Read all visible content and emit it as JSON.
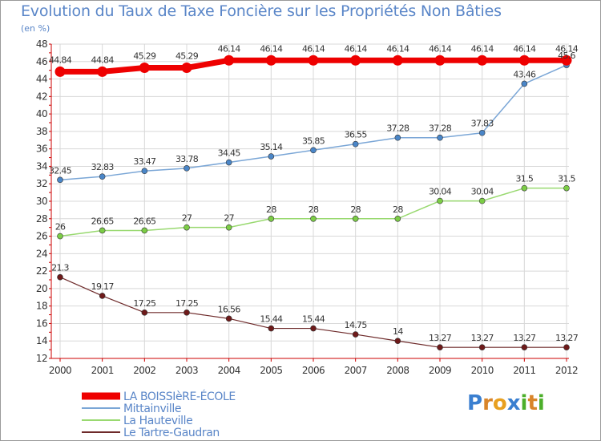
{
  "title": "Evolution du Taux de Taxe Foncière sur les Propriétés Non Bâties",
  "unit": "(en %)",
  "logo": {
    "text": "Proxiti",
    "letters": [
      "P",
      "r",
      "o",
      "x",
      "i",
      "t",
      "i"
    ],
    "colors": [
      "#3a7fd0",
      "#d9852a",
      "#e8a020",
      "#3a7fd0",
      "#4caf2a",
      "#d9852a",
      "#4caf2a"
    ]
  },
  "chart_data": {
    "type": "line",
    "categories": [
      "2000",
      "2001",
      "2002",
      "2003",
      "2004",
      "2005",
      "2006",
      "2007",
      "2008",
      "2009",
      "2010",
      "2011",
      "2012"
    ],
    "ylim": [
      12,
      48
    ],
    "yticks": [
      12,
      14,
      16,
      18,
      20,
      22,
      24,
      26,
      28,
      30,
      32,
      34,
      36,
      38,
      40,
      42,
      44,
      46,
      48
    ],
    "grid": true,
    "series": [
      {
        "name": "Le Tartre-Gaudran",
        "color": "#6e2a2a",
        "dot": "#6e1a1a",
        "width": 1.2,
        "radius": 3.5,
        "values": [
          21.3,
          19.17,
          17.25,
          17.25,
          16.56,
          15.44,
          15.44,
          14.75,
          14,
          13.27,
          13.27,
          13.27,
          13.27
        ],
        "labels": [
          "21.3",
          "19.17",
          "17.25",
          "17.25",
          "16.56",
          "15.44",
          "15.44",
          "14.75",
          "14",
          "13.27",
          "13.27",
          "13.27",
          "13.27"
        ]
      },
      {
        "name": "La Hauteville",
        "color": "#99d970",
        "dot": "#7ccd46",
        "width": 1.5,
        "radius": 3.5,
        "values": [
          26,
          26.65,
          26.65,
          27,
          27,
          28,
          28,
          28,
          28,
          30.04,
          30.04,
          31.5,
          31.5
        ],
        "labels": [
          "26",
          "26.65",
          "26.65",
          "27",
          "27",
          "28",
          "28",
          "28",
          "28",
          "30.04",
          "30.04",
          "31.5",
          "31.5"
        ]
      },
      {
        "name": "Mittainville",
        "color": "#7aa6d6",
        "dot": "#4a86c8",
        "width": 1.5,
        "radius": 3.5,
        "values": [
          32.45,
          32.83,
          33.47,
          33.78,
          34.45,
          35.14,
          35.85,
          36.55,
          37.28,
          37.28,
          37.83,
          43.46,
          45.6
        ],
        "labels": [
          "32.45",
          "32.83",
          "33.47",
          "33.78",
          "34.45",
          "35.14",
          "35.85",
          "36.55",
          "37.28",
          "37.28",
          "37.83",
          "43.46",
          "45.6"
        ]
      },
      {
        "name": "LA BOISSIèRE-ÉCOLE",
        "color": "#ee0000",
        "dot": "#ee0000",
        "width": 7,
        "radius": 6.5,
        "values": [
          44.84,
          44.84,
          45.29,
          45.29,
          46.14,
          46.14,
          46.14,
          46.14,
          46.14,
          46.14,
          46.14,
          46.14,
          46.14
        ],
        "labels": [
          "44.84",
          "44.84",
          "45.29",
          "45.29",
          "46.14",
          "46.14",
          "46.14",
          "46.14",
          "46.14",
          "46.14",
          "46.14",
          "46.14",
          "46.14"
        ]
      }
    ],
    "legend": {
      "position": "bottom-left",
      "order": [
        "LA BOISSIèRE-ÉCOLE",
        "Mittainville",
        "La Hauteville",
        "Le Tartre-Gaudran"
      ]
    }
  }
}
